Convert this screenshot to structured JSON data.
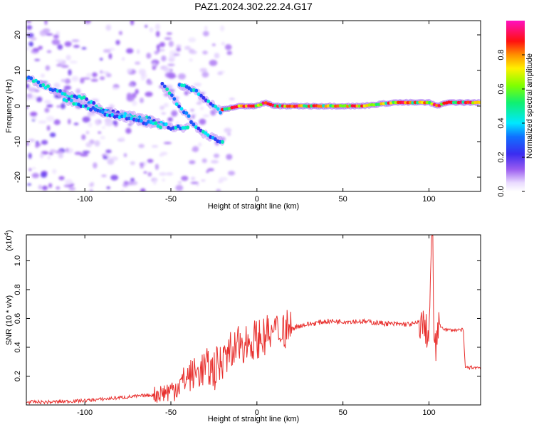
{
  "title": "PAZ1.2024.302.22.24.G17",
  "chart_data": [
    {
      "type": "heatmap",
      "xlabel": "Height of straight line (km)",
      "ylabel": "Frequency (Hz)",
      "xlim": [
        -134,
        130
      ],
      "ylim": [
        -24,
        24
      ],
      "x_ticks": [
        -100,
        -50,
        0,
        50,
        100
      ],
      "y_ticks": [
        -20,
        -10,
        0,
        10,
        20
      ],
      "grid": false,
      "colorbar": {
        "label": "Normalized spectral amplitude",
        "range": [
          0,
          1
        ],
        "ticks": [
          "0.0",
          "0.2",
          "0.4",
          "0.6",
          "0.8"
        ],
        "colormap": "rainbow (white/lavender → violet → blue → cyan → green → yellow → orange → red → magenta)"
      },
      "ridges": [
        {
          "x": [
            -134,
            -120,
            -110,
            -100,
            -90,
            -80,
            -70,
            -60,
            -50,
            -40
          ],
          "y": [
            8,
            5,
            3,
            2,
            -1,
            -2,
            -3,
            -4,
            -6,
            -6
          ]
        },
        {
          "x": [
            -112,
            -100,
            -90,
            -80,
            -70,
            -60,
            -55
          ],
          "y": [
            2,
            0,
            -2,
            -3,
            -4,
            -5,
            -6
          ]
        },
        {
          "x": [
            -55,
            -50,
            -45,
            -40,
            -35,
            -30,
            -25,
            -20
          ],
          "y": [
            6,
            3,
            0,
            -3,
            -6,
            -8,
            -9,
            -10
          ]
        },
        {
          "x": [
            -45,
            -40,
            -35,
            -30,
            -25,
            -20
          ],
          "y": [
            6,
            5,
            4,
            2,
            0,
            -2
          ]
        },
        {
          "x": [
            -20,
            -10,
            0,
            5,
            10,
            20,
            40,
            60,
            80,
            95,
            100,
            105,
            110,
            130
          ],
          "y": [
            -1,
            0,
            0,
            1,
            0,
            0,
            0,
            0,
            1,
            1,
            1,
            0,
            1,
            1
          ]
        }
      ]
    },
    {
      "type": "line",
      "xlabel": "Height of straight line (km)",
      "ylabel": "SNR (10 * v/v)",
      "y_scale_label": "(x10",
      "y_scale_exponent": "4",
      "y_scale_suffix": ")",
      "xlim": [
        -134,
        130
      ],
      "ylim": [
        0,
        1.18
      ],
      "x_ticks": [
        -100,
        -50,
        0,
        50,
        100
      ],
      "y_ticks": [
        0.2,
        0.4,
        0.6,
        0.8,
        1.0
      ],
      "y_tick_labels": [
        "0.2",
        "0.4",
        "0.6",
        "0.8",
        "1.0"
      ],
      "grid": false,
      "series": [
        {
          "color": "#e8302e",
          "x": [
            -134,
            -120,
            -100,
            -90,
            -80,
            -70,
            -60,
            -50,
            -45,
            -40,
            -35,
            -30,
            -25,
            -20,
            -15,
            -10,
            -5,
            0,
            5,
            10,
            15,
            20,
            25,
            30,
            40,
            50,
            60,
            70,
            80,
            90,
            95,
            97,
            99,
            100,
            101,
            102,
            103,
            104,
            105,
            110,
            115,
            120,
            121,
            125,
            130
          ],
          "y": [
            0.02,
            0.02,
            0.03,
            0.04,
            0.05,
            0.06,
            0.07,
            0.1,
            0.14,
            0.2,
            0.22,
            0.26,
            0.24,
            0.3,
            0.34,
            0.42,
            0.44,
            0.46,
            0.48,
            0.5,
            0.52,
            0.53,
            0.55,
            0.56,
            0.58,
            0.58,
            0.58,
            0.57,
            0.56,
            0.56,
            0.57,
            0.55,
            0.5,
            0.48,
            0.95,
            1.18,
            0.45,
            0.35,
            0.56,
            0.52,
            0.52,
            0.52,
            0.26,
            0.26,
            0.26
          ]
        }
      ]
    }
  ]
}
